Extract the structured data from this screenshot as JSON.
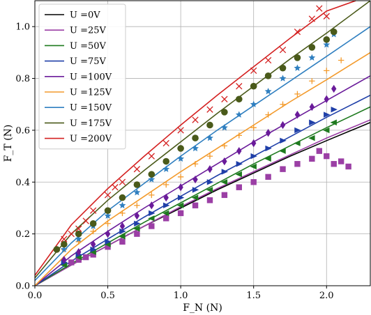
{
  "chart_data": {
    "type": "scatter",
    "title": "",
    "xlabel": "F_N (N)",
    "ylabel": "F_T (N)",
    "xlim": [
      0.0,
      2.3
    ],
    "ylim": [
      0.0,
      1.1
    ],
    "xticks": [
      "0.0",
      "0.5",
      "1.0",
      "1.5",
      "2.0"
    ],
    "yticks": [
      "0.0",
      "0.2",
      "0.4",
      "0.6",
      "0.8",
      "1.0"
    ],
    "grid": true,
    "legend_position": "top-left",
    "series": [
      {
        "name": "U =0V",
        "color": "#000000",
        "marker": "none",
        "fit": [
          [
            0,
            0
          ],
          [
            0.25,
            0.08
          ],
          [
            0.5,
            0.155
          ],
          [
            0.75,
            0.23
          ],
          [
            1.0,
            0.3
          ],
          [
            1.25,
            0.37
          ],
          [
            1.5,
            0.435
          ],
          [
            1.75,
            0.5
          ],
          [
            2.0,
            0.56
          ],
          [
            2.3,
            0.63
          ]
        ],
        "points": []
      },
      {
        "name": "U =25V",
        "color": "#9b3fa5",
        "marker": "square",
        "fit": [
          [
            0,
            0
          ],
          [
            0.25,
            0.08
          ],
          [
            0.5,
            0.155
          ],
          [
            0.75,
            0.23
          ],
          [
            1.0,
            0.305
          ],
          [
            1.25,
            0.375
          ],
          [
            1.5,
            0.44
          ],
          [
            1.75,
            0.505
          ],
          [
            2.0,
            0.57
          ],
          [
            2.3,
            0.64
          ]
        ],
        "points": [
          [
            0.25,
            0.09
          ],
          [
            0.3,
            0.1
          ],
          [
            0.35,
            0.11
          ],
          [
            0.4,
            0.12
          ],
          [
            0.5,
            0.15
          ],
          [
            0.6,
            0.17
          ],
          [
            0.7,
            0.2
          ],
          [
            0.8,
            0.23
          ],
          [
            0.9,
            0.26
          ],
          [
            1.0,
            0.28
          ],
          [
            1.1,
            0.31
          ],
          [
            1.2,
            0.33
          ],
          [
            1.3,
            0.35
          ],
          [
            1.4,
            0.38
          ],
          [
            1.5,
            0.4
          ],
          [
            1.6,
            0.42
          ],
          [
            1.7,
            0.45
          ],
          [
            1.8,
            0.47
          ],
          [
            1.9,
            0.49
          ],
          [
            1.95,
            0.52
          ],
          [
            2.0,
            0.5
          ],
          [
            2.05,
            0.47
          ],
          [
            2.1,
            0.48
          ],
          [
            2.15,
            0.46
          ]
        ]
      },
      {
        "name": "U =50V",
        "color": "#1e7a1e",
        "marker": "triangle-left",
        "fit": [
          [
            0,
            0
          ],
          [
            0.25,
            0.085
          ],
          [
            0.5,
            0.165
          ],
          [
            0.75,
            0.245
          ],
          [
            1.0,
            0.32
          ],
          [
            1.25,
            0.395
          ],
          [
            1.5,
            0.47
          ],
          [
            1.75,
            0.54
          ],
          [
            2.0,
            0.61
          ],
          [
            2.3,
            0.69
          ]
        ],
        "points": [
          [
            0.2,
            0.08
          ],
          [
            0.3,
            0.11
          ],
          [
            0.4,
            0.13
          ],
          [
            0.5,
            0.16
          ],
          [
            0.6,
            0.19
          ],
          [
            0.7,
            0.22
          ],
          [
            0.8,
            0.26
          ],
          [
            0.9,
            0.28
          ],
          [
            1.0,
            0.31
          ],
          [
            1.1,
            0.34
          ],
          [
            1.2,
            0.37
          ],
          [
            1.3,
            0.4
          ],
          [
            1.4,
            0.43
          ],
          [
            1.5,
            0.46
          ],
          [
            1.6,
            0.49
          ],
          [
            1.7,
            0.52
          ],
          [
            1.8,
            0.55
          ],
          [
            1.9,
            0.57
          ],
          [
            2.0,
            0.6
          ],
          [
            2.05,
            0.63
          ]
        ]
      },
      {
        "name": "U =75V",
        "color": "#1f3fa8",
        "marker": "triangle-right",
        "fit": [
          [
            0,
            0
          ],
          [
            0.25,
            0.095
          ],
          [
            0.5,
            0.18
          ],
          [
            0.75,
            0.265
          ],
          [
            1.0,
            0.345
          ],
          [
            1.25,
            0.425
          ],
          [
            1.5,
            0.5
          ],
          [
            1.75,
            0.575
          ],
          [
            2.0,
            0.65
          ],
          [
            2.3,
            0.735
          ]
        ],
        "points": [
          [
            0.2,
            0.09
          ],
          [
            0.3,
            0.12
          ],
          [
            0.4,
            0.14
          ],
          [
            0.5,
            0.17
          ],
          [
            0.6,
            0.21
          ],
          [
            0.7,
            0.24
          ],
          [
            0.8,
            0.28
          ],
          [
            0.9,
            0.31
          ],
          [
            1.0,
            0.34
          ],
          [
            1.1,
            0.37
          ],
          [
            1.2,
            0.4
          ],
          [
            1.3,
            0.44
          ],
          [
            1.4,
            0.47
          ],
          [
            1.5,
            0.5
          ],
          [
            1.6,
            0.53
          ],
          [
            1.7,
            0.56
          ],
          [
            1.8,
            0.6
          ],
          [
            1.9,
            0.63
          ],
          [
            2.0,
            0.66
          ],
          [
            2.05,
            0.68
          ]
        ]
      },
      {
        "name": "U =100V",
        "color": "#6a1b9a",
        "marker": "diamond",
        "fit": [
          [
            0,
            0
          ],
          [
            0.25,
            0.115
          ],
          [
            0.5,
            0.21
          ],
          [
            0.75,
            0.3
          ],
          [
            1.0,
            0.385
          ],
          [
            1.25,
            0.47
          ],
          [
            1.5,
            0.555
          ],
          [
            1.75,
            0.635
          ],
          [
            2.0,
            0.715
          ],
          [
            2.3,
            0.81
          ]
        ],
        "points": [
          [
            0.2,
            0.1
          ],
          [
            0.3,
            0.13
          ],
          [
            0.4,
            0.16
          ],
          [
            0.5,
            0.2
          ],
          [
            0.6,
            0.23
          ],
          [
            0.7,
            0.27
          ],
          [
            0.8,
            0.31
          ],
          [
            0.9,
            0.34
          ],
          [
            1.0,
            0.38
          ],
          [
            1.1,
            0.41
          ],
          [
            1.2,
            0.45
          ],
          [
            1.3,
            0.48
          ],
          [
            1.4,
            0.52
          ],
          [
            1.5,
            0.55
          ],
          [
            1.6,
            0.59
          ],
          [
            1.7,
            0.62
          ],
          [
            1.8,
            0.66
          ],
          [
            1.9,
            0.69
          ],
          [
            2.0,
            0.72
          ],
          [
            2.05,
            0.76
          ]
        ]
      },
      {
        "name": "U =125V",
        "color": "#f39a2b",
        "marker": "plus",
        "fit": [
          [
            0,
            0
          ],
          [
            0.25,
            0.14
          ],
          [
            0.5,
            0.25
          ],
          [
            0.75,
            0.345
          ],
          [
            1.0,
            0.44
          ],
          [
            1.25,
            0.53
          ],
          [
            1.5,
            0.62
          ],
          [
            1.75,
            0.71
          ],
          [
            2.0,
            0.795
          ],
          [
            2.3,
            0.9
          ]
        ],
        "points": [
          [
            0.2,
            0.14
          ],
          [
            0.3,
            0.17
          ],
          [
            0.4,
            0.21
          ],
          [
            0.5,
            0.24
          ],
          [
            0.6,
            0.28
          ],
          [
            0.7,
            0.31
          ],
          [
            0.8,
            0.35
          ],
          [
            0.9,
            0.39
          ],
          [
            1.0,
            0.42
          ],
          [
            1.1,
            0.47
          ],
          [
            1.2,
            0.5
          ],
          [
            1.3,
            0.54
          ],
          [
            1.4,
            0.58
          ],
          [
            1.5,
            0.61
          ],
          [
            1.6,
            0.66
          ],
          [
            1.7,
            0.7
          ],
          [
            1.8,
            0.74
          ],
          [
            1.9,
            0.79
          ],
          [
            2.0,
            0.83
          ],
          [
            2.1,
            0.87
          ]
        ]
      },
      {
        "name": "U =150V",
        "color": "#2f7fc0",
        "marker": "star",
        "fit": [
          [
            0,
            0.02
          ],
          [
            0.25,
            0.165
          ],
          [
            0.5,
            0.29
          ],
          [
            0.75,
            0.395
          ],
          [
            1.0,
            0.5
          ],
          [
            1.25,
            0.6
          ],
          [
            1.5,
            0.695
          ],
          [
            1.75,
            0.79
          ],
          [
            2.0,
            0.885
          ],
          [
            2.3,
            1.0
          ]
        ],
        "points": [
          [
            0.2,
            0.14
          ],
          [
            0.3,
            0.18
          ],
          [
            0.4,
            0.23
          ],
          [
            0.5,
            0.27
          ],
          [
            0.6,
            0.31
          ],
          [
            0.7,
            0.36
          ],
          [
            0.8,
            0.41
          ],
          [
            0.9,
            0.45
          ],
          [
            1.0,
            0.49
          ],
          [
            1.1,
            0.53
          ],
          [
            1.2,
            0.57
          ],
          [
            1.3,
            0.61
          ],
          [
            1.4,
            0.66
          ],
          [
            1.5,
            0.7
          ],
          [
            1.6,
            0.75
          ],
          [
            1.7,
            0.8
          ],
          [
            1.8,
            0.84
          ],
          [
            1.9,
            0.88
          ],
          [
            2.0,
            0.93
          ],
          [
            2.05,
            0.97
          ]
        ]
      },
      {
        "name": "U =175V",
        "color": "#4a5a1a",
        "marker": "circle",
        "fit": [
          [
            0,
            0.03
          ],
          [
            0.25,
            0.2
          ],
          [
            0.5,
            0.33
          ],
          [
            0.75,
            0.445
          ],
          [
            1.0,
            0.555
          ],
          [
            1.25,
            0.665
          ],
          [
            1.5,
            0.77
          ],
          [
            1.75,
            0.875
          ],
          [
            2.0,
            0.975
          ],
          [
            2.3,
            1.1
          ]
        ],
        "points": [
          [
            0.15,
            0.14
          ],
          [
            0.2,
            0.16
          ],
          [
            0.3,
            0.2
          ],
          [
            0.4,
            0.24
          ],
          [
            0.5,
            0.29
          ],
          [
            0.6,
            0.34
          ],
          [
            0.7,
            0.39
          ],
          [
            0.8,
            0.43
          ],
          [
            0.9,
            0.48
          ],
          [
            1.0,
            0.53
          ],
          [
            1.1,
            0.57
          ],
          [
            1.2,
            0.62
          ],
          [
            1.3,
            0.67
          ],
          [
            1.4,
            0.72
          ],
          [
            1.5,
            0.77
          ],
          [
            1.6,
            0.81
          ],
          [
            1.7,
            0.84
          ],
          [
            1.8,
            0.88
          ],
          [
            1.9,
            0.92
          ],
          [
            2.0,
            0.95
          ],
          [
            2.05,
            0.98
          ]
        ]
      },
      {
        "name": "U =200V",
        "color": "#d42020",
        "marker": "x",
        "fit": [
          [
            0,
            0.04
          ],
          [
            0.25,
            0.235
          ],
          [
            0.5,
            0.375
          ],
          [
            0.75,
            0.5
          ],
          [
            1.0,
            0.62
          ],
          [
            1.25,
            0.735
          ],
          [
            1.5,
            0.845
          ],
          [
            1.75,
            0.955
          ],
          [
            2.0,
            1.06
          ],
          [
            2.2,
            1.1
          ]
        ],
        "points": [
          [
            0.2,
            0.18
          ],
          [
            0.25,
            0.2
          ],
          [
            0.3,
            0.22
          ],
          [
            0.35,
            0.25
          ],
          [
            0.4,
            0.29
          ],
          [
            0.5,
            0.35
          ],
          [
            0.55,
            0.38
          ],
          [
            0.6,
            0.4
          ],
          [
            0.7,
            0.45
          ],
          [
            0.8,
            0.5
          ],
          [
            0.9,
            0.55
          ],
          [
            1.0,
            0.6
          ],
          [
            1.1,
            0.64
          ],
          [
            1.2,
            0.68
          ],
          [
            1.3,
            0.72
          ],
          [
            1.4,
            0.77
          ],
          [
            1.5,
            0.83
          ],
          [
            1.6,
            0.87
          ],
          [
            1.7,
            0.91
          ],
          [
            1.8,
            0.98
          ],
          [
            1.9,
            1.03
          ],
          [
            1.95,
            1.07
          ],
          [
            2.0,
            1.04
          ]
        ]
      }
    ]
  }
}
